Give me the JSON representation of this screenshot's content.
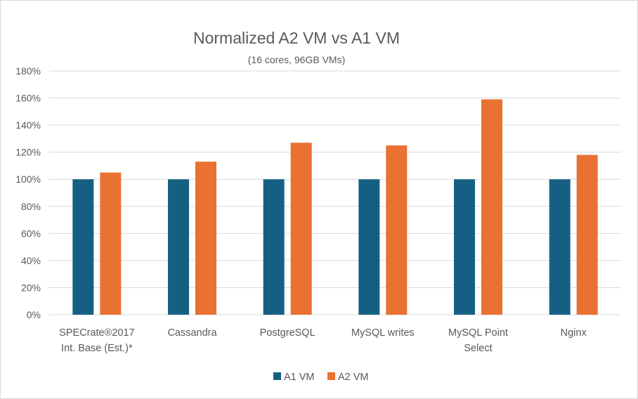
{
  "chart_data": {
    "type": "bar",
    "title": "Normalized A2 VM vs A1 VM",
    "subtitle": "(16 cores, 96GB VMs)",
    "categories": [
      [
        "SPECrate®2017",
        "Int. Base (Est.)*"
      ],
      [
        "Cassandra"
      ],
      [
        "PostgreSQL"
      ],
      [
        "MySQL writes"
      ],
      [
        "MySQL Point",
        "Select"
      ],
      [
        "Nginx"
      ]
    ],
    "series": [
      {
        "name": "A1 VM",
        "color": "#156082",
        "values": [
          100,
          100,
          100,
          100,
          100,
          100
        ]
      },
      {
        "name": "A2 VM",
        "color": "#E97132",
        "values": [
          105,
          113,
          127,
          125,
          159,
          118
        ]
      }
    ],
    "ylim": [
      0,
      180
    ],
    "yticks": [
      0,
      20,
      40,
      60,
      80,
      100,
      120,
      140,
      160,
      180
    ],
    "ytick_labels": [
      "0%",
      "20%",
      "40%",
      "60%",
      "80%",
      "100%",
      "120%",
      "140%",
      "160%",
      "180%"
    ],
    "xlabel": "",
    "ylabel": "",
    "grid": true,
    "legend_position": "bottom"
  }
}
